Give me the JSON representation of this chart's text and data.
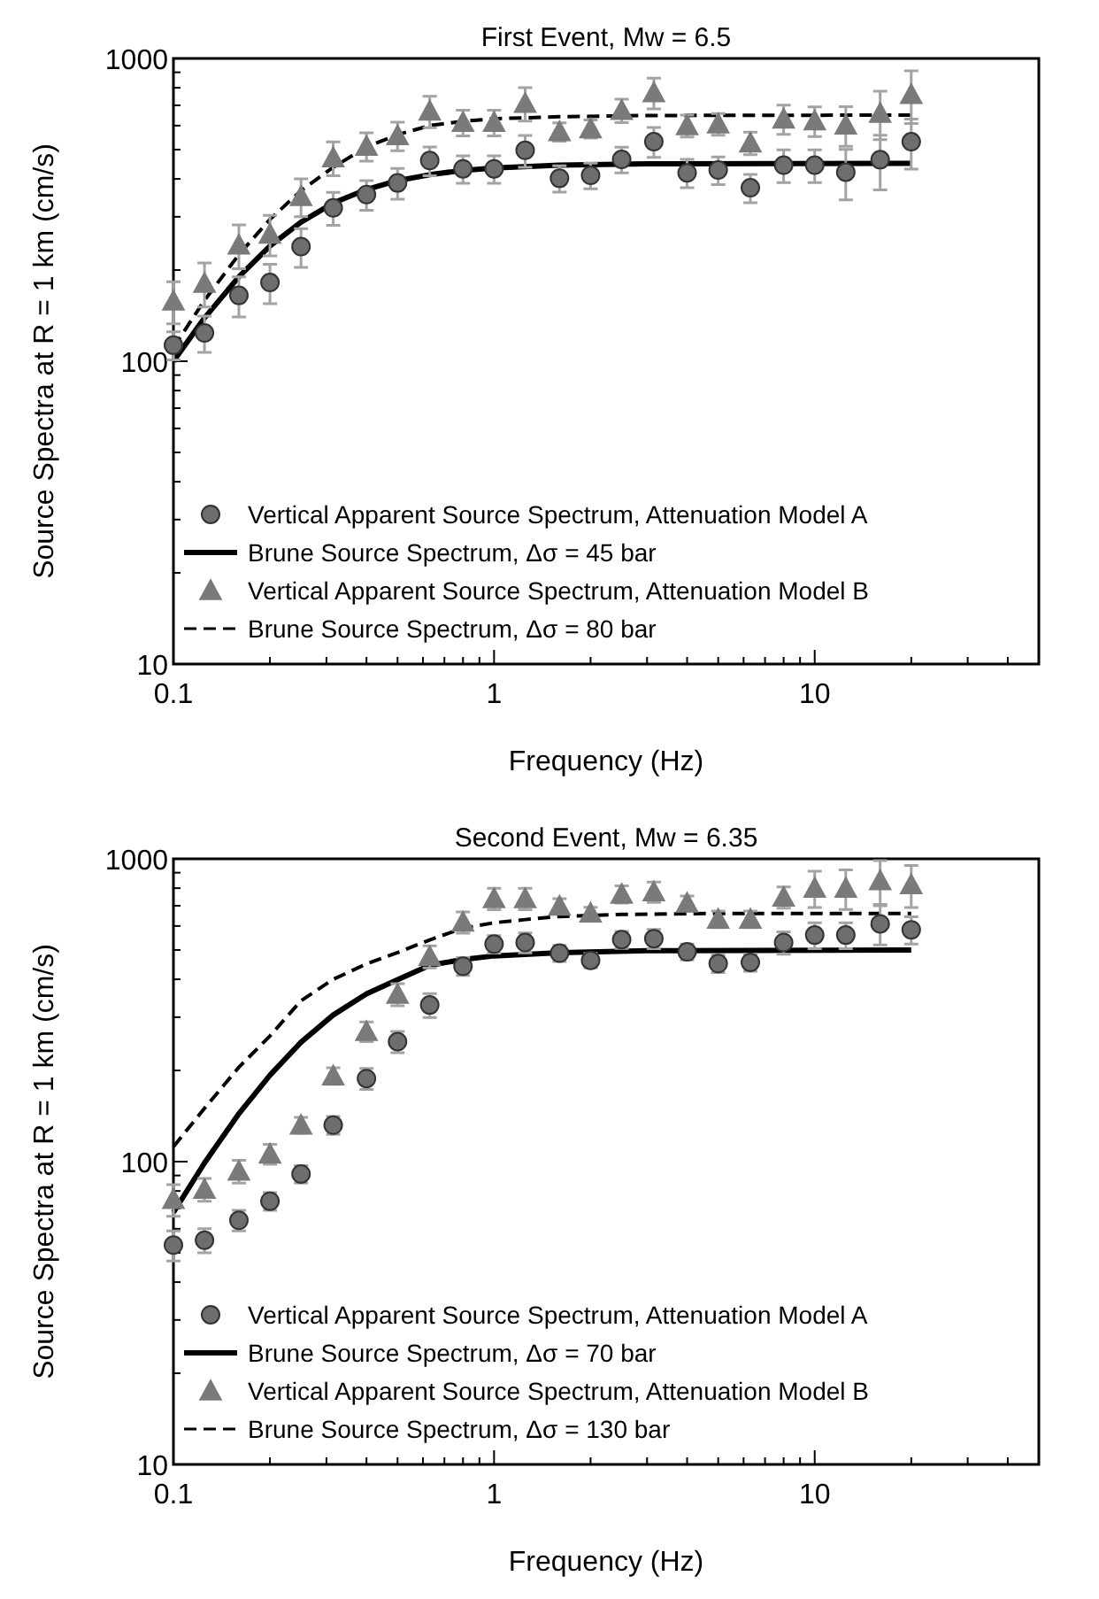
{
  "chart_data": [
    {
      "type": "scatter",
      "title": "First Event, Mw = 6.5",
      "xlabel": "Frequency (Hz)",
      "ylabel": "Source Spectra at R = 1 km (cm/s)",
      "log": "xy",
      "xlim": [
        0.1,
        50
      ],
      "ylim": [
        10,
        1000
      ],
      "xticks": [
        0.1,
        {
          "value": 0.2,
          "label": null
        },
        {
          "value": 0.3,
          "label": null
        },
        {
          "value": 0.4,
          "label": null
        },
        {
          "value": 0.5,
          "label": null
        },
        {
          "value": 0.6,
          "label": null
        },
        {
          "value": 0.7,
          "label": null
        },
        {
          "value": 0.8,
          "label": null
        },
        {
          "value": 0.9,
          "label": null
        },
        1,
        {
          "value": 2,
          "label": null
        },
        {
          "value": 3,
          "label": null
        },
        {
          "value": 4,
          "label": null
        },
        {
          "value": 5,
          "label": null
        },
        {
          "value": 6,
          "label": null
        },
        {
          "value": 7,
          "label": null
        },
        {
          "value": 8,
          "label": null
        },
        {
          "value": 9,
          "label": null
        },
        10,
        {
          "value": 20,
          "label": null
        },
        {
          "value": 30,
          "label": null
        },
        {
          "value": 40,
          "label": null
        }
      ],
      "yticks": [
        10,
        {
          "value": 20,
          "label": null
        },
        {
          "value": 30,
          "label": null
        },
        {
          "value": 40,
          "label": null
        },
        {
          "value": 50,
          "label": null
        },
        {
          "value": 60,
          "label": null
        },
        {
          "value": 70,
          "label": null
        },
        {
          "value": 80,
          "label": null
        },
        {
          "value": 90,
          "label": null
        },
        100,
        {
          "value": 200,
          "label": null
        },
        {
          "value": 300,
          "label": null
        },
        {
          "value": 400,
          "label": null
        },
        {
          "value": 500,
          "label": null
        },
        {
          "value": 600,
          "label": null
        },
        {
          "value": 700,
          "label": null
        },
        {
          "value": 800,
          "label": null
        },
        {
          "value": 900,
          "label": null
        },
        1000
      ],
      "legend": "bottom left",
      "grid": false,
      "series": [
        {
          "name": "Vertical Apparent Source Spectrum, Attenuation Model A",
          "type": "scatter",
          "marker": "circle",
          "color": "#6e6e6e",
          "x": [
            0.1,
            0.125,
            0.16,
            0.2,
            0.25,
            0.315,
            0.4,
            0.5,
            0.63,
            0.8,
            1,
            1.25,
            1.6,
            2,
            2.5,
            3.15,
            4,
            5,
            6.3,
            8,
            10,
            12.5,
            16,
            20
          ],
          "values": [
            113,
            124,
            165,
            182,
            239,
            321,
            355,
            388,
            460,
            432,
            432,
            497,
            402,
            411,
            464,
            531,
            419,
            428,
            374,
            444,
            444,
            421,
            463,
            531
          ],
          "errors": [
            12,
            17,
            25,
            27,
            35,
            40,
            40,
            45,
            50,
            45,
            45,
            60,
            40,
            40,
            45,
            60,
            45,
            45,
            40,
            55,
            55,
            80,
            95,
            100
          ]
        },
        {
          "name": "Brune Source Spectrum, Δσ = 45 bar",
          "type": "line",
          "line_style": "solid",
          "color": "#000000",
          "x": [
            0.1,
            0.125,
            0.16,
            0.2,
            0.25,
            0.315,
            0.4,
            0.5,
            0.63,
            0.8,
            1,
            1.6,
            3,
            20
          ],
          "values": [
            100,
            139,
            190,
            240,
            288,
            333,
            369,
            395,
            413,
            427,
            435,
            444,
            449,
            450
          ]
        },
        {
          "name": "Vertical Apparent Source Spectrum, Attenuation Model B",
          "type": "scatter",
          "marker": "triangle",
          "color": "#7a7a7a",
          "x": [
            0.1,
            0.125,
            0.16,
            0.2,
            0.25,
            0.315,
            0.4,
            0.5,
            0.63,
            0.8,
            1,
            1.25,
            1.6,
            2,
            2.5,
            3.15,
            4,
            5,
            6.3,
            8,
            10,
            12.5,
            16,
            20
          ],
          "values": [
            158,
            181,
            242,
            263,
            350,
            470,
            513,
            556,
            670,
            615,
            615,
            711,
            573,
            586,
            674,
            771,
            600,
            608,
            526,
            631,
            622,
            603,
            659,
            760
          ],
          "errors": [
            25,
            30,
            40,
            40,
            50,
            60,
            55,
            60,
            80,
            60,
            60,
            90,
            40,
            40,
            60,
            90,
            50,
            50,
            45,
            70,
            70,
            90,
            120,
            150
          ]
        },
        {
          "name": "Brune Source Spectrum, Δσ = 80 bar",
          "type": "line",
          "line_style": "dashed",
          "color": "#000000",
          "x": [
            0.1,
            0.125,
            0.16,
            0.2,
            0.25,
            0.315,
            0.4,
            0.5,
            0.63,
            0.8,
            1,
            1.6,
            3,
            20
          ],
          "values": [
            111,
            159,
            225,
            294,
            366,
            437,
            510,
            560,
            600,
            620,
            632,
            642,
            648,
            650
          ]
        }
      ]
    },
    {
      "type": "scatter",
      "title": "Second Event, Mw = 6.35",
      "xlabel": "Frequency (Hz)",
      "ylabel": "Source Spectra at R = 1 km (cm/s)",
      "log": "xy",
      "xlim": [
        0.1,
        50
      ],
      "ylim": [
        10,
        1000
      ],
      "xticks": [
        0.1,
        {
          "value": 0.2,
          "label": null
        },
        {
          "value": 0.3,
          "label": null
        },
        {
          "value": 0.4,
          "label": null
        },
        {
          "value": 0.5,
          "label": null
        },
        {
          "value": 0.6,
          "label": null
        },
        {
          "value": 0.7,
          "label": null
        },
        {
          "value": 0.8,
          "label": null
        },
        {
          "value": 0.9,
          "label": null
        },
        1,
        {
          "value": 2,
          "label": null
        },
        {
          "value": 3,
          "label": null
        },
        {
          "value": 4,
          "label": null
        },
        {
          "value": 5,
          "label": null
        },
        {
          "value": 6,
          "label": null
        },
        {
          "value": 7,
          "label": null
        },
        {
          "value": 8,
          "label": null
        },
        {
          "value": 9,
          "label": null
        },
        10,
        {
          "value": 20,
          "label": null
        },
        {
          "value": 30,
          "label": null
        },
        {
          "value": 40,
          "label": null
        }
      ],
      "yticks": [
        10,
        {
          "value": 20,
          "label": null
        },
        {
          "value": 30,
          "label": null
        },
        {
          "value": 40,
          "label": null
        },
        {
          "value": 50,
          "label": null
        },
        {
          "value": 60,
          "label": null
        },
        {
          "value": 70,
          "label": null
        },
        {
          "value": 80,
          "label": null
        },
        {
          "value": 90,
          "label": null
        },
        100,
        {
          "value": 200,
          "label": null
        },
        {
          "value": 300,
          "label": null
        },
        {
          "value": 400,
          "label": null
        },
        {
          "value": 500,
          "label": null
        },
        {
          "value": 600,
          "label": null
        },
        {
          "value": 700,
          "label": null
        },
        {
          "value": 800,
          "label": null
        },
        {
          "value": 900,
          "label": null
        },
        1000
      ],
      "legend": "bottom left",
      "grid": false,
      "series": [
        {
          "name": "Vertical Apparent Source Spectrum, Attenuation Model A",
          "type": "scatter",
          "marker": "circle",
          "color": "#6e6e6e",
          "x": [
            0.1,
            0.125,
            0.16,
            0.2,
            0.25,
            0.315,
            0.4,
            0.5,
            0.63,
            0.8,
            1,
            1.25,
            1.6,
            2,
            2.5,
            3.15,
            4,
            5,
            6.3,
            8,
            10,
            12.5,
            16,
            20
          ],
          "values": [
            53,
            55,
            64,
            74,
            91,
            132,
            188,
            249,
            329,
            442,
            523,
            529,
            488,
            462,
            541,
            545,
            493,
            451,
            455,
            529,
            560,
            560,
            610,
            583
          ],
          "errors": [
            6,
            5,
            5,
            5,
            6,
            9,
            15,
            20,
            30,
            30,
            35,
            40,
            30,
            25,
            35,
            40,
            30,
            30,
            30,
            45,
            55,
            55,
            90,
            60
          ]
        },
        {
          "name": "Brune Source Spectrum, Δσ = 70 bar",
          "type": "line",
          "line_style": "solid",
          "color": "#000000",
          "x": [
            0.1,
            0.125,
            0.16,
            0.2,
            0.25,
            0.315,
            0.4,
            0.5,
            0.63,
            0.8,
            1,
            1.6,
            3,
            20
          ],
          "values": [
            68,
            99,
            144,
            193,
            248,
            305,
            358,
            399,
            445,
            465,
            478,
            490,
            497,
            500
          ]
        },
        {
          "name": "Vertical Apparent Source Spectrum, Attenuation Model B",
          "type": "scatter",
          "marker": "triangle",
          "color": "#7a7a7a",
          "x": [
            0.1,
            0.125,
            0.16,
            0.2,
            0.25,
            0.315,
            0.4,
            0.5,
            0.63,
            0.8,
            1,
            1.25,
            1.6,
            2,
            2.5,
            3.15,
            4,
            5,
            6.3,
            8,
            10,
            12.5,
            16,
            20
          ],
          "values": [
            75,
            81,
            93,
            106,
            132,
            192,
            269,
            357,
            476,
            618,
            739,
            739,
            698,
            662,
            764,
            778,
            714,
            632,
            632,
            747,
            800,
            800,
            847,
            821
          ],
          "errors": [
            9,
            7,
            8,
            8,
            8,
            12,
            20,
            30,
            40,
            50,
            60,
            60,
            40,
            30,
            50,
            60,
            40,
            40,
            40,
            60,
            110,
            120,
            140,
            130
          ]
        },
        {
          "name": "Brune Source Spectrum, Δσ = 130 bar",
          "type": "line",
          "line_style": "dashed",
          "color": "#000000",
          "x": [
            0.1,
            0.125,
            0.16,
            0.2,
            0.25,
            0.315,
            0.4,
            0.5,
            0.63,
            0.8,
            1,
            1.25,
            1.6,
            2.5,
            5,
            20
          ],
          "values": [
            112,
            150,
            205,
            260,
            340,
            400,
            450,
            490,
            540,
            590,
            615,
            630,
            645,
            655,
            660,
            660
          ]
        }
      ]
    }
  ]
}
